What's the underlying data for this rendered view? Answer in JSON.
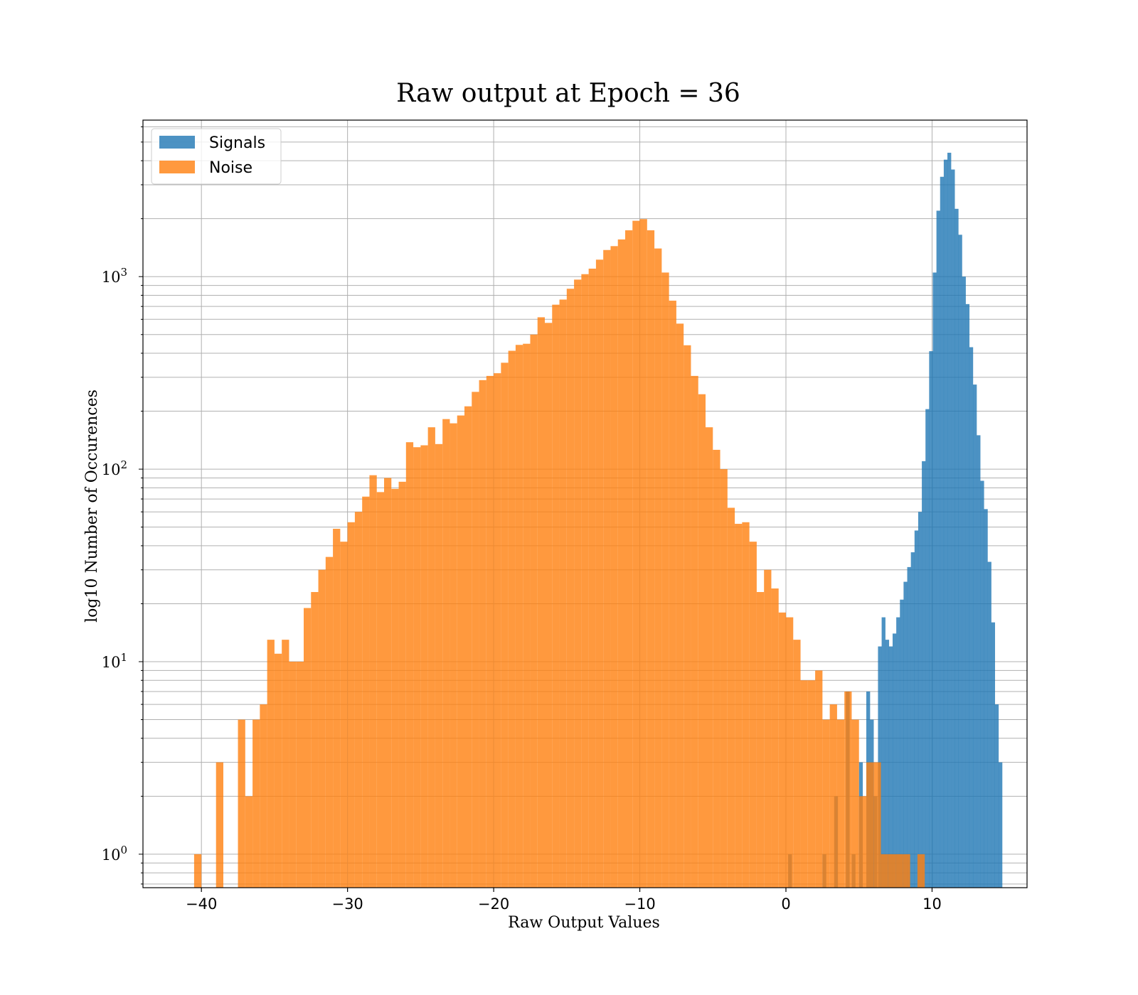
{
  "chart_data": {
    "type": "bar",
    "subtype": "histogram",
    "title": "Raw output at Epoch = 36",
    "xlabel": "Raw Output Values",
    "ylabel": "log10 Number of Occurences",
    "xlim": [
      -44,
      16.5
    ],
    "ylim": [
      0.67,
      6500
    ],
    "yscale": "log",
    "grid": true,
    "legend_position": "top-left",
    "x_ticks": [
      {
        "value": -40,
        "label": "−40"
      },
      {
        "value": -30,
        "label": "−30"
      },
      {
        "value": -20,
        "label": "−20"
      },
      {
        "value": -10,
        "label": "−10"
      },
      {
        "value": 0,
        "label": "0"
      },
      {
        "value": 10,
        "label": "10"
      }
    ],
    "y_ticks": [
      {
        "value": 1,
        "base": "10",
        "exp": "0"
      },
      {
        "value": 10,
        "base": "10",
        "exp": "1"
      },
      {
        "value": 100,
        "base": "10",
        "exp": "2"
      },
      {
        "value": 1000,
        "base": "10",
        "exp": "3"
      }
    ],
    "series": [
      {
        "name": "Signals",
        "color": "#1f77b4",
        "opacity": 0.8,
        "bin_width": 0.26,
        "bins": [
          [
            0.15,
            1
          ],
          [
            2.5,
            1
          ],
          [
            3.3,
            2
          ],
          [
            4.1,
            7
          ],
          [
            4.5,
            1
          ],
          [
            5.0,
            3
          ],
          [
            5.5,
            7
          ],
          [
            5.75,
            5
          ],
          [
            6.0,
            2
          ],
          [
            6.3,
            12
          ],
          [
            6.55,
            17
          ],
          [
            6.8,
            13
          ],
          [
            7.05,
            12
          ],
          [
            7.3,
            14
          ],
          [
            7.55,
            17
          ],
          [
            7.8,
            21
          ],
          [
            8.05,
            26
          ],
          [
            8.3,
            31
          ],
          [
            8.55,
            37
          ],
          [
            8.8,
            48
          ],
          [
            9.05,
            60
          ],
          [
            9.3,
            110
          ],
          [
            9.55,
            205
          ],
          [
            9.8,
            410
          ],
          [
            10.05,
            1050
          ],
          [
            10.3,
            2200
          ],
          [
            10.55,
            3300
          ],
          [
            10.8,
            4050
          ],
          [
            11.05,
            4400
          ],
          [
            11.3,
            3600
          ],
          [
            11.55,
            2250
          ],
          [
            11.8,
            1650
          ],
          [
            12.05,
            1000
          ],
          [
            12.3,
            720
          ],
          [
            12.55,
            430
          ],
          [
            12.8,
            275
          ],
          [
            13.05,
            150
          ],
          [
            13.3,
            87
          ],
          [
            13.55,
            62
          ],
          [
            13.8,
            33
          ],
          [
            14.05,
            16
          ],
          [
            14.3,
            6
          ],
          [
            14.55,
            3
          ]
        ]
      },
      {
        "name": "Noise",
        "color": "#ff7f0e",
        "opacity": 0.8,
        "bin_width": 0.5,
        "bins": [
          [
            -40.5,
            1
          ],
          [
            -39.0,
            3
          ],
          [
            -37.5,
            5
          ],
          [
            -37.0,
            2
          ],
          [
            -36.5,
            5
          ],
          [
            -36.0,
            6
          ],
          [
            -35.5,
            13
          ],
          [
            -35.0,
            11
          ],
          [
            -34.5,
            13
          ],
          [
            -34.0,
            10
          ],
          [
            -33.5,
            10
          ],
          [
            -33.0,
            19
          ],
          [
            -32.5,
            23
          ],
          [
            -32.0,
            30
          ],
          [
            -31.5,
            35
          ],
          [
            -31.0,
            49
          ],
          [
            -30.5,
            42
          ],
          [
            -30.0,
            53
          ],
          [
            -29.5,
            60
          ],
          [
            -29.0,
            72
          ],
          [
            -28.5,
            93
          ],
          [
            -28.0,
            76
          ],
          [
            -27.5,
            90
          ],
          [
            -27.0,
            79
          ],
          [
            -26.5,
            86
          ],
          [
            -26.0,
            138
          ],
          [
            -25.5,
            130
          ],
          [
            -25.0,
            133
          ],
          [
            -24.5,
            165
          ],
          [
            -24.0,
            135
          ],
          [
            -23.5,
            182
          ],
          [
            -23.0,
            173
          ],
          [
            -22.5,
            190
          ],
          [
            -22.0,
            212
          ],
          [
            -21.5,
            252
          ],
          [
            -21.0,
            290
          ],
          [
            -20.5,
            305
          ],
          [
            -20.0,
            315
          ],
          [
            -19.5,
            357
          ],
          [
            -19.0,
            412
          ],
          [
            -18.5,
            442
          ],
          [
            -18.0,
            448
          ],
          [
            -17.5,
            500
          ],
          [
            -17.0,
            615
          ],
          [
            -16.5,
            575
          ],
          [
            -16.0,
            715
          ],
          [
            -15.5,
            760
          ],
          [
            -15.0,
            865
          ],
          [
            -14.5,
            965
          ],
          [
            -14.0,
            1030
          ],
          [
            -13.5,
            1100
          ],
          [
            -13.0,
            1225
          ],
          [
            -12.5,
            1375
          ],
          [
            -12.0,
            1440
          ],
          [
            -11.5,
            1560
          ],
          [
            -11.0,
            1740
          ],
          [
            -10.5,
            1950
          ],
          [
            -10.0,
            1990
          ],
          [
            -9.5,
            1740
          ],
          [
            -9.0,
            1400
          ],
          [
            -8.5,
            1050
          ],
          [
            -8.0,
            750
          ],
          [
            -7.5,
            570
          ],
          [
            -7.0,
            440
          ],
          [
            -6.5,
            305
          ],
          [
            -6.0,
            245
          ],
          [
            -5.5,
            165
          ],
          [
            -5.0,
            126
          ],
          [
            -4.5,
            100
          ],
          [
            -4.0,
            63
          ],
          [
            -3.5,
            52
          ],
          [
            -3.0,
            53
          ],
          [
            -2.5,
            42
          ],
          [
            -2.0,
            23
          ],
          [
            -1.5,
            30
          ],
          [
            -1.0,
            24
          ],
          [
            -0.5,
            18
          ],
          [
            0.0,
            17
          ],
          [
            0.5,
            13
          ],
          [
            1.0,
            8
          ],
          [
            1.5,
            8
          ],
          [
            2.0,
            9
          ],
          [
            2.5,
            5
          ],
          [
            3.0,
            6
          ],
          [
            3.5,
            5
          ],
          [
            4.0,
            7
          ],
          [
            4.5,
            5
          ],
          [
            5.0,
            2
          ],
          [
            5.5,
            3
          ],
          [
            6.0,
            3
          ],
          [
            6.5,
            1
          ],
          [
            7.0,
            1
          ],
          [
            7.5,
            1
          ],
          [
            8.0,
            1
          ],
          [
            9.0,
            1
          ]
        ]
      }
    ]
  }
}
